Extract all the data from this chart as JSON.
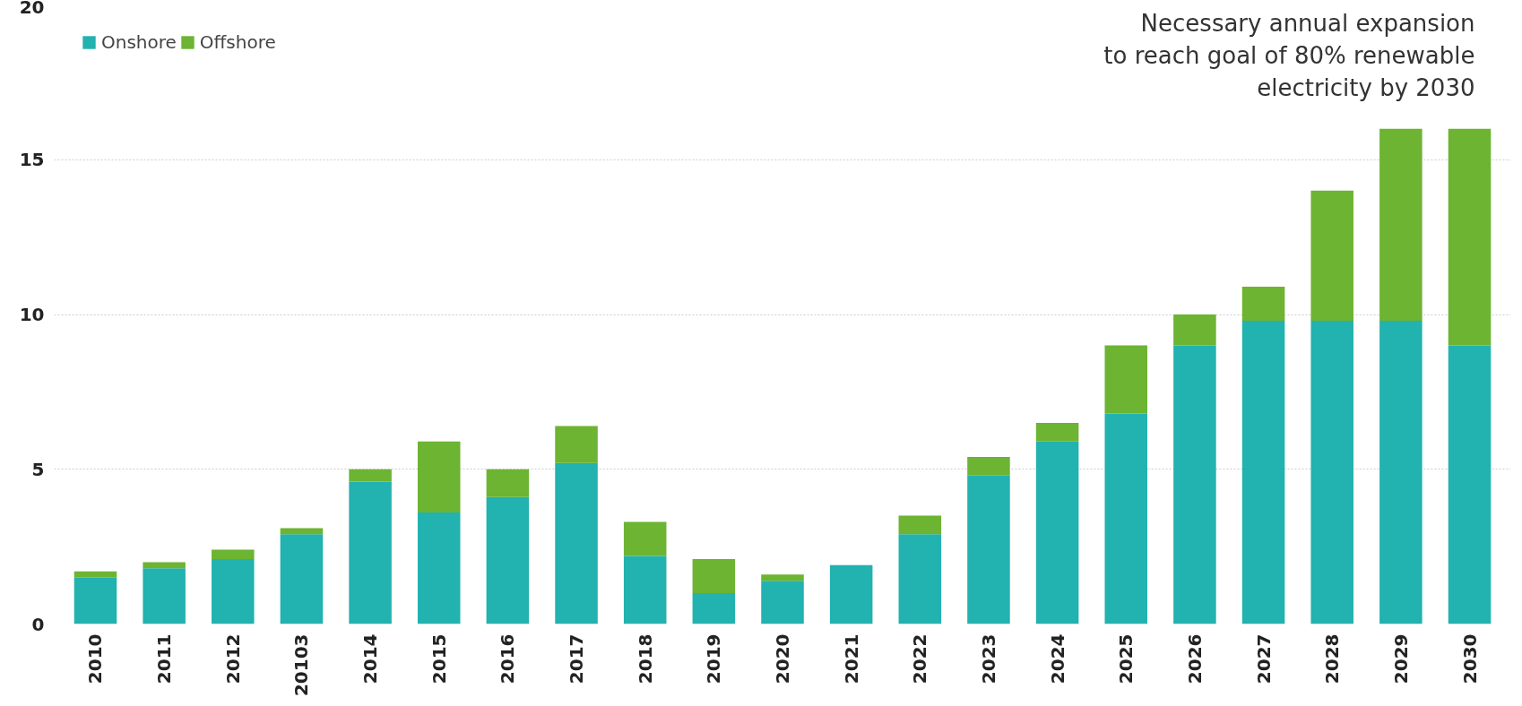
{
  "chart_data": {
    "type": "bar",
    "stacked": true,
    "categories": [
      "2010",
      "2011",
      "2012",
      "20103",
      "2014",
      "2015",
      "2016",
      "2017",
      "2018",
      "2019",
      "2020",
      "2021",
      "2022",
      "2023",
      "2024",
      "2025",
      "2026",
      "2027",
      "2028",
      "2029",
      "2030"
    ],
    "series": [
      {
        "name": "Onshore",
        "color": "#22b2b0",
        "values": [
          1.5,
          1.8,
          2.1,
          2.9,
          4.6,
          3.6,
          4.1,
          5.2,
          2.2,
          1.0,
          1.4,
          1.9,
          2.9,
          4.8,
          5.9,
          6.8,
          9.0,
          9.8,
          9.8,
          9.8,
          9.0
        ]
      },
      {
        "name": "Offshore",
        "color": "#6cb432",
        "values": [
          0.2,
          0.2,
          0.3,
          0.2,
          0.4,
          2.3,
          0.9,
          1.2,
          1.1,
          1.1,
          0.2,
          0,
          0.6,
          0.6,
          0.6,
          2.2,
          1.0,
          1.1,
          4.2,
          6.2,
          7.0
        ]
      }
    ],
    "ylim": [
      0,
      20
    ],
    "yticks": [
      0,
      5,
      10,
      15,
      20
    ],
    "grid": "y",
    "legend": "top left",
    "annotations": [
      "Necessary annual expansion\nto reach goal of 80% renewable\nelectricity by 2030"
    ]
  }
}
